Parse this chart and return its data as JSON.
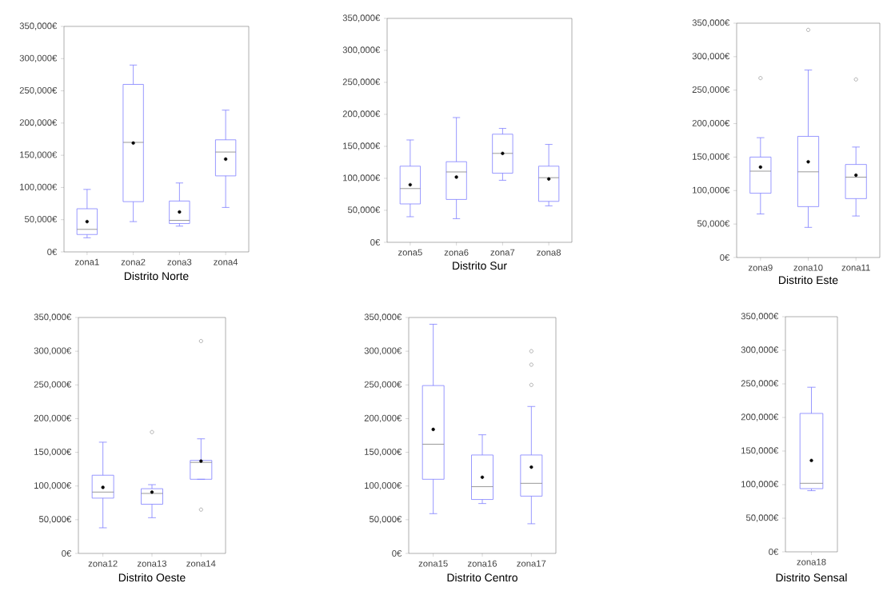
{
  "chart_data": [
    {
      "type": "box",
      "title": "Distrito Norte",
      "categories": [
        "zona1",
        "zona2",
        "zona3",
        "zona4"
      ],
      "color": "#7f7fff",
      "ylim": [
        0,
        350000
      ],
      "yticks": [
        {
          "value": 0,
          "label": "0€"
        },
        {
          "value": 50000,
          "label": "50,000€"
        },
        {
          "value": 100000,
          "label": "100,000€"
        },
        {
          "value": 150000,
          "label": "150,000€"
        },
        {
          "value": 200000,
          "label": "200,000€"
        },
        {
          "value": 250000,
          "label": "250,000€"
        },
        {
          "value": 300000,
          "label": "300,000€"
        },
        {
          "value": 350000,
          "label": "350,000€"
        }
      ],
      "boxes": [
        {
          "low": 22000,
          "q1": 27000,
          "median": 35000,
          "q3": 67000,
          "high": 97000,
          "mean": 47000
        },
        {
          "low": 47000,
          "q1": 78000,
          "median": 170000,
          "q3": 260000,
          "high": 290000,
          "mean": 169000
        },
        {
          "low": 40000,
          "q1": 44000,
          "median": 49000,
          "q3": 79000,
          "high": 107000,
          "mean": 62000
        },
        {
          "low": 69000,
          "q1": 118000,
          "median": 155000,
          "q3": 174000,
          "high": 220000,
          "mean": 144000
        }
      ]
    },
    {
      "type": "box",
      "title": "Distrito Sur",
      "categories": [
        "zona5",
        "zona6",
        "zona7",
        "zona8"
      ],
      "color": "#7f7fff",
      "ylim": [
        0,
        350000
      ],
      "yticks": [
        {
          "value": 0,
          "label": "0€"
        },
        {
          "value": 50000,
          "label": "50,000€"
        },
        {
          "value": 100000,
          "label": "100,000€"
        },
        {
          "value": 150000,
          "label": "150,000€"
        },
        {
          "value": 200000,
          "label": "200,000€"
        },
        {
          "value": 250000,
          "label": "250,000€"
        },
        {
          "value": 300000,
          "label": "300,000€"
        },
        {
          "value": 350000,
          "label": "350,000€"
        }
      ],
      "boxes": [
        {
          "low": 40000,
          "q1": 60000,
          "median": 84000,
          "q3": 119000,
          "high": 160000,
          "mean": 90000
        },
        {
          "low": 37000,
          "q1": 67000,
          "median": 110000,
          "q3": 126000,
          "high": 195000,
          "mean": 102000
        },
        {
          "low": 97000,
          "q1": 108000,
          "median": 139000,
          "q3": 169000,
          "high": 178000,
          "mean": 139000
        },
        {
          "low": 57000,
          "q1": 64000,
          "median": 101000,
          "q3": 119000,
          "high": 153000,
          "mean": 99000
        }
      ]
    },
    {
      "type": "box",
      "title": "Distrito Este",
      "categories": [
        "zona9",
        "zona10",
        "zona11"
      ],
      "color": "#7f7fff",
      "ylim": [
        0,
        350000
      ],
      "yticks": [
        {
          "value": 0,
          "label": "0€"
        },
        {
          "value": 50000,
          "label": "50,000€"
        },
        {
          "value": 100000,
          "label": "100,000€"
        },
        {
          "value": 150000,
          "label": "150,000€"
        },
        {
          "value": 200000,
          "label": "200,000€"
        },
        {
          "value": 250000,
          "label": "250,000€"
        },
        {
          "value": 300000,
          "label": "300,000€"
        },
        {
          "value": 350000,
          "label": "350,000€"
        }
      ],
      "boxes": [
        {
          "low": 65000,
          "q1": 96000,
          "median": 129000,
          "q3": 150000,
          "high": 179000,
          "mean": 135000,
          "outliers": [
            268000
          ]
        },
        {
          "low": 45000,
          "q1": 76000,
          "median": 128000,
          "q3": 181000,
          "high": 280000,
          "mean": 143000,
          "outliers": [
            340000
          ]
        },
        {
          "low": 62000,
          "q1": 88000,
          "median": 120000,
          "q3": 139000,
          "high": 165000,
          "mean": 123000,
          "outliers": [
            266000
          ]
        }
      ]
    },
    {
      "type": "box",
      "title": "Distrito Oeste",
      "categories": [
        "zona12",
        "zona13",
        "zona14"
      ],
      "color": "#7f7fff",
      "ylim": [
        0,
        350000
      ],
      "yticks": [
        {
          "value": 0,
          "label": "0€"
        },
        {
          "value": 50000,
          "label": "50,000€"
        },
        {
          "value": 100000,
          "label": "100,000€"
        },
        {
          "value": 150000,
          "label": "150,000€"
        },
        {
          "value": 200000,
          "label": "200,000€"
        },
        {
          "value": 250000,
          "label": "250,000€"
        },
        {
          "value": 300000,
          "label": "300,000€"
        },
        {
          "value": 350000,
          "label": "350,000€"
        }
      ],
      "boxes": [
        {
          "low": 38000,
          "q1": 82000,
          "median": 91000,
          "q3": 116000,
          "high": 165000,
          "mean": 98000
        },
        {
          "low": 53000,
          "q1": 73000,
          "median": 89000,
          "q3": 96000,
          "high": 102000,
          "mean": 91000,
          "outliers": [
            180000
          ]
        },
        {
          "low": 110000,
          "q1": 110000,
          "median": 135000,
          "q3": 138000,
          "high": 170000,
          "mean": 137000,
          "outliers": [
            315000,
            65000
          ]
        }
      ]
    },
    {
      "type": "box",
      "title": "Distrito Centro",
      "categories": [
        "zona15",
        "zona16",
        "zona17"
      ],
      "color": "#7f7fff",
      "ylim": [
        0,
        350000
      ],
      "yticks": [
        {
          "value": 0,
          "label": "0€"
        },
        {
          "value": 50000,
          "label": "50,000€"
        },
        {
          "value": 100000,
          "label": "100,000€"
        },
        {
          "value": 150000,
          "label": "150,000€"
        },
        {
          "value": 200000,
          "label": "200,000€"
        },
        {
          "value": 250000,
          "label": "250,000€"
        },
        {
          "value": 300000,
          "label": "300,000€"
        },
        {
          "value": 350000,
          "label": "350,000€"
        }
      ],
      "boxes": [
        {
          "low": 59000,
          "q1": 110000,
          "median": 162000,
          "q3": 249000,
          "high": 340000,
          "mean": 184000
        },
        {
          "low": 74000,
          "q1": 80000,
          "median": 99000,
          "q3": 146000,
          "high": 176000,
          "mean": 113000
        },
        {
          "low": 44000,
          "q1": 85000,
          "median": 104000,
          "q3": 146000,
          "high": 218000,
          "mean": 128000,
          "outliers": [
            250000,
            280000,
            300000
          ]
        }
      ]
    },
    {
      "type": "box",
      "title": "Distrito Sensal",
      "categories": [
        "zona18"
      ],
      "color": "#7f7fff",
      "ylim": [
        0,
        350000
      ],
      "yticks": [
        {
          "value": 0,
          "label": "0€"
        },
        {
          "value": 50000,
          "label": "50,000€"
        },
        {
          "value": 100000,
          "label": "100,000€"
        },
        {
          "value": 150000,
          "label": "150,000€"
        },
        {
          "value": 200000,
          "label": "200,000€"
        },
        {
          "value": 250000,
          "label": "250,000€"
        },
        {
          "value": 300000,
          "label": "300,000€"
        },
        {
          "value": 350000,
          "label": "350,000€"
        }
      ],
      "boxes": [
        {
          "low": 91000,
          "q1": 94000,
          "median": 102000,
          "q3": 206000,
          "high": 245000,
          "mean": 136000
        }
      ]
    }
  ]
}
